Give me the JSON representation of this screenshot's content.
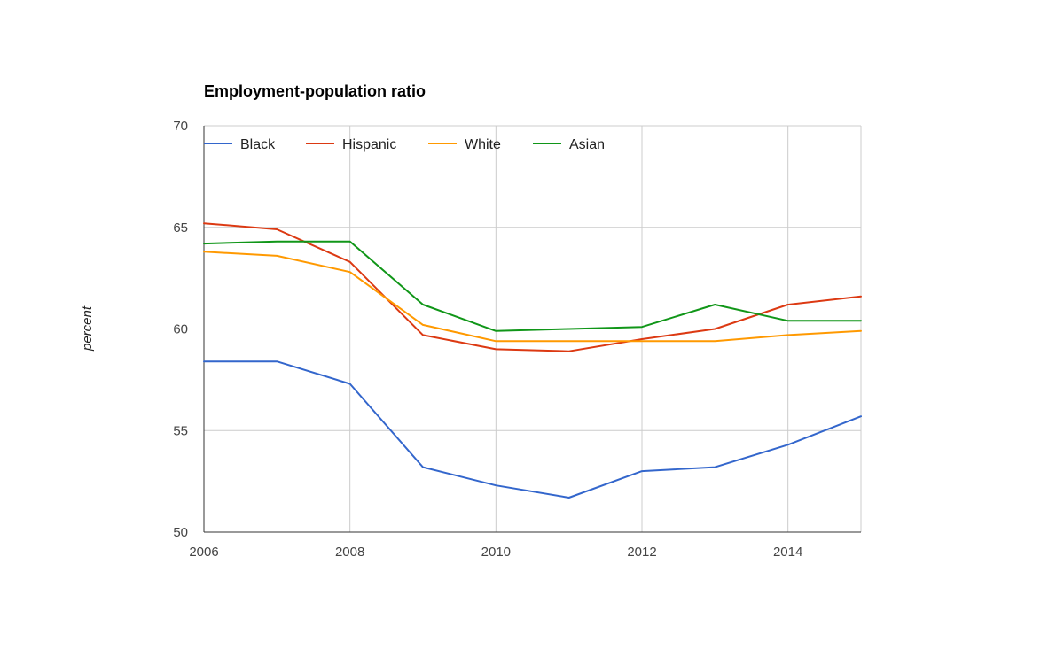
{
  "chart_data": {
    "type": "line",
    "title": "Employment-population ratio",
    "xlabel": "",
    "ylabel": "percent",
    "x": [
      2006,
      2007,
      2008,
      2009,
      2010,
      2011,
      2012,
      2013,
      2014,
      2015
    ],
    "xlim": [
      2006,
      2015
    ],
    "ylim": [
      50,
      70
    ],
    "x_ticks": [
      "2006",
      "2008",
      "2010",
      "2012",
      "2014"
    ],
    "y_ticks": [
      "50",
      "55",
      "60",
      "65",
      "70"
    ],
    "grid": true,
    "legend_position": "top-left",
    "series": [
      {
        "name": "Black",
        "color": "#3366cc",
        "values": [
          58.4,
          58.4,
          57.3,
          53.2,
          52.3,
          51.7,
          53.0,
          53.2,
          54.3,
          55.7
        ]
      },
      {
        "name": "Hispanic",
        "color": "#dc3912",
        "values": [
          65.2,
          64.9,
          63.3,
          59.7,
          59.0,
          58.9,
          59.5,
          60.0,
          61.2,
          61.6
        ]
      },
      {
        "name": "White",
        "color": "#ff9900",
        "values": [
          63.8,
          63.6,
          62.8,
          60.2,
          59.4,
          59.4,
          59.4,
          59.4,
          59.7,
          59.9
        ]
      },
      {
        "name": "Asian",
        "color": "#109618",
        "values": [
          64.2,
          64.3,
          64.3,
          61.2,
          59.9,
          60.0,
          60.1,
          61.2,
          60.4,
          60.4
        ]
      }
    ]
  }
}
